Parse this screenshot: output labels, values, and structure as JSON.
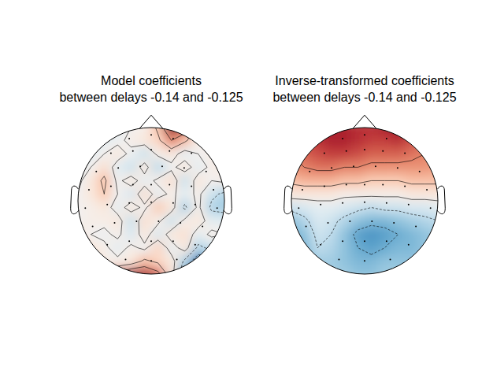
{
  "chart_data": [
    {
      "type": "topomap",
      "title": "Model coefficients\nbetween delays -0.14 and -0.125",
      "xlim": [
        -1.1,
        1.1
      ],
      "ylim": [
        -1.1,
        1.1
      ],
      "clim": [
        -1,
        1
      ],
      "contour_levels": [
        -0.5,
        -0.25,
        0,
        0.25,
        0.5
      ],
      "cells": [
        [
          0,
          0,
          -0.1,
          -0.1,
          0,
          0.05,
          0.3,
          0.9,
          0.7,
          0.1,
          0,
          0
        ],
        [
          -0.1,
          -0.15,
          -0.1,
          -0.05,
          0.05,
          0.1,
          0.2,
          0.5,
          0.3,
          0.05,
          -0.05,
          0
        ],
        [
          -0.15,
          -0.1,
          0,
          0.1,
          -0.05,
          -0.2,
          0.05,
          0.1,
          -0.1,
          0,
          0.05,
          0.05
        ],
        [
          -0.1,
          0,
          0.15,
          -0.1,
          -0.2,
          0.1,
          -0.25,
          -0.05,
          0.1,
          -0.1,
          0.05,
          0.05
        ],
        [
          -0.05,
          0.1,
          0.3,
          -0.05,
          0.1,
          -0.1,
          0.05,
          0.15,
          -0.2,
          0.1,
          0,
          0.05
        ],
        [
          0,
          0.1,
          0.25,
          0,
          -0.15,
          0.15,
          -0.1,
          0.05,
          -0.1,
          0.05,
          -0.2,
          -0.3
        ],
        [
          0,
          0.05,
          0.1,
          -0.1,
          0.1,
          -0.05,
          0.25,
          0.1,
          -0.3,
          0.05,
          -0.3,
          -0.35
        ],
        [
          0,
          0.05,
          0.05,
          0.1,
          -0.2,
          0.15,
          0.05,
          -0.2,
          0.05,
          0.1,
          -0.1,
          -0.1
        ],
        [
          0.1,
          0,
          -0.05,
          0.05,
          -0.15,
          0.1,
          -0.15,
          0.1,
          0.15,
          -0.1,
          0.05,
          0
        ],
        [
          0.3,
          0.1,
          0.05,
          -0.1,
          0.05,
          -0.05,
          0.2,
          -0.1,
          0.1,
          -0.3,
          -0.2,
          -0.2
        ],
        [
          0.4,
          0.2,
          0.05,
          0.05,
          0.1,
          0.3,
          0.2,
          0.1,
          -0.3,
          -0.7,
          -0.6,
          -0.3
        ],
        [
          0.2,
          0.3,
          0.3,
          0.6,
          0.8,
          0.8,
          0.6,
          0.1,
          -0.5,
          -0.9,
          -0.6,
          -0.2
        ]
      ],
      "sensors": {
        "x": [
          -0.3,
          0,
          0.3,
          -0.55,
          -0.25,
          0,
          0.25,
          0.55,
          -0.75,
          -0.45,
          -0.15,
          0.15,
          0.45,
          0.75,
          -0.85,
          -0.55,
          -0.25,
          0,
          0.25,
          0.55,
          0.85,
          -0.9,
          -0.6,
          -0.3,
          0,
          0.3,
          0.6,
          0.9,
          -0.8,
          -0.5,
          -0.2,
          0.1,
          0.4,
          0.7,
          -0.6,
          -0.3,
          0,
          0.3,
          0.6,
          -0.35,
          0,
          0.35
        ],
        "y": [
          0.85,
          0.9,
          0.85,
          0.65,
          0.68,
          0.7,
          0.68,
          0.65,
          0.4,
          0.45,
          0.47,
          0.47,
          0.45,
          0.4,
          0.15,
          0.2,
          0.22,
          0.22,
          0.22,
          0.2,
          0.15,
          -0.1,
          -0.05,
          -0.03,
          -0.02,
          -0.03,
          -0.05,
          -0.1,
          -0.35,
          -0.3,
          -0.28,
          -0.28,
          -0.3,
          -0.35,
          -0.6,
          -0.55,
          -0.55,
          -0.55,
          -0.6,
          -0.8,
          -0.82,
          -0.8
        ]
      }
    },
    {
      "type": "topomap",
      "title": "Inverse-transformed coefficients\nbetween delays -0.14 and -0.125",
      "xlim": [
        -1.1,
        1.1
      ],
      "ylim": [
        -1.1,
        1.1
      ],
      "clim": [
        -1,
        1
      ],
      "contour_levels": [
        -0.5,
        -0.25,
        0,
        0.25,
        0.5
      ],
      "cells": [
        [
          0.6,
          0.7,
          0.75,
          0.8,
          0.8,
          0.75,
          0.75,
          0.8,
          0.85,
          0.7,
          0.6,
          0.5
        ],
        [
          0.55,
          0.65,
          0.75,
          0.8,
          0.8,
          0.75,
          0.7,
          0.7,
          0.75,
          0.65,
          0.55,
          0.5
        ],
        [
          0.5,
          0.6,
          0.65,
          0.7,
          0.7,
          0.65,
          0.6,
          0.6,
          0.6,
          0.55,
          0.5,
          0.45
        ],
        [
          0.45,
          0.5,
          0.55,
          0.55,
          0.5,
          0.5,
          0.45,
          0.45,
          0.45,
          0.45,
          0.45,
          0.4
        ],
        [
          0.3,
          0.35,
          0.35,
          0.35,
          0.3,
          0.3,
          0.25,
          0.25,
          0.25,
          0.3,
          0.3,
          0.3
        ],
        [
          0.1,
          0.1,
          0.1,
          0.1,
          0.05,
          0.05,
          0.05,
          0.05,
          0.05,
          0.1,
          0.1,
          0.1
        ],
        [
          -0.2,
          -0.15,
          -0.1,
          -0.1,
          -0.15,
          -0.2,
          -0.25,
          -0.2,
          -0.2,
          -0.15,
          -0.15,
          -0.1
        ],
        [
          -0.4,
          -0.3,
          -0.15,
          -0.2,
          -0.3,
          -0.4,
          -0.45,
          -0.45,
          -0.4,
          -0.35,
          -0.3,
          -0.25
        ],
        [
          -0.5,
          -0.4,
          -0.2,
          -0.25,
          -0.4,
          -0.55,
          -0.6,
          -0.55,
          -0.5,
          -0.45,
          -0.4,
          -0.35
        ],
        [
          -0.55,
          -0.45,
          -0.25,
          -0.3,
          -0.4,
          -0.5,
          -0.55,
          -0.5,
          -0.45,
          -0.45,
          -0.4,
          -0.35
        ],
        [
          -0.5,
          -0.45,
          -0.35,
          -0.35,
          -0.4,
          -0.45,
          -0.45,
          -0.4,
          -0.4,
          -0.4,
          -0.35,
          -0.3
        ],
        [
          -0.45,
          -0.4,
          -0.35,
          -0.35,
          -0.35,
          -0.4,
          -0.4,
          -0.35,
          -0.35,
          -0.35,
          -0.3,
          -0.3
        ]
      ],
      "sensors": {
        "x": [
          -0.3,
          0,
          0.3,
          -0.55,
          -0.25,
          0,
          0.25,
          0.55,
          -0.75,
          -0.45,
          -0.15,
          0.15,
          0.45,
          0.75,
          -0.85,
          -0.55,
          -0.25,
          0,
          0.25,
          0.55,
          0.85,
          -0.9,
          -0.6,
          -0.3,
          0,
          0.3,
          0.6,
          0.9,
          -0.8,
          -0.5,
          -0.2,
          0.1,
          0.4,
          0.7,
          -0.6,
          -0.3,
          0,
          0.3,
          0.6,
          -0.35,
          0,
          0.35
        ],
        "y": [
          0.85,
          0.9,
          0.85,
          0.65,
          0.68,
          0.7,
          0.68,
          0.65,
          0.4,
          0.45,
          0.47,
          0.47,
          0.45,
          0.4,
          0.15,
          0.2,
          0.22,
          0.22,
          0.22,
          0.2,
          0.15,
          -0.1,
          -0.05,
          -0.03,
          -0.02,
          -0.03,
          -0.05,
          -0.1,
          -0.35,
          -0.3,
          -0.28,
          -0.28,
          -0.3,
          -0.35,
          -0.6,
          -0.55,
          -0.55,
          -0.55,
          -0.6,
          -0.8,
          -0.82,
          -0.8
        ]
      }
    }
  ]
}
